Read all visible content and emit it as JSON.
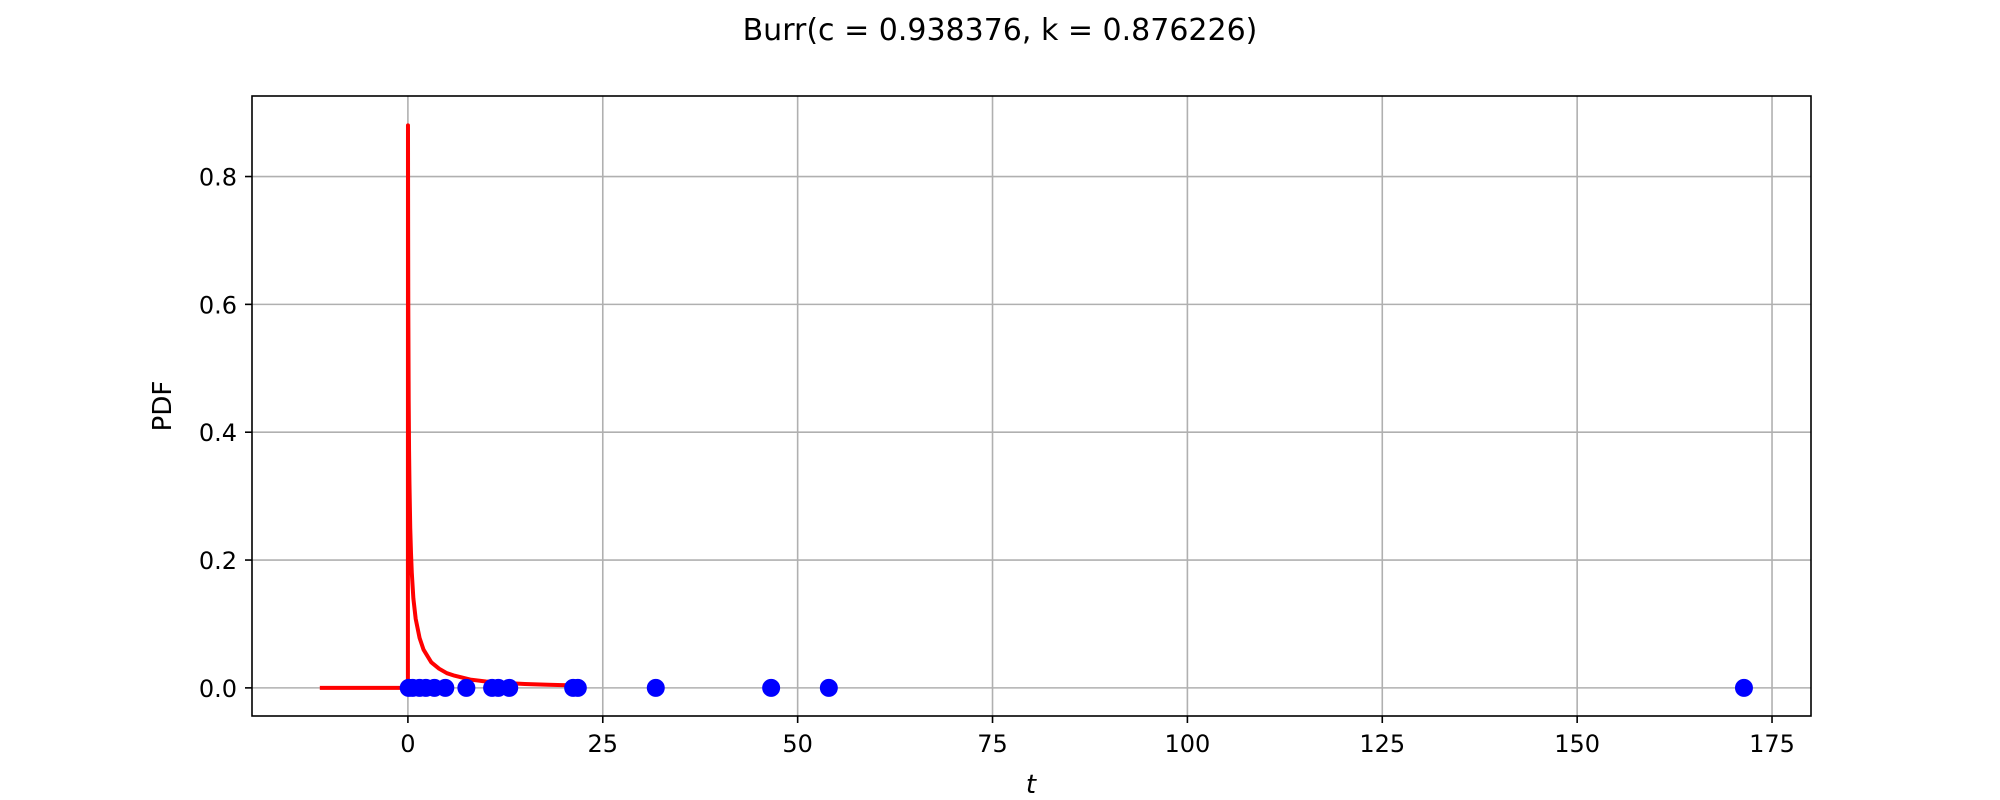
{
  "chart_data": {
    "type": "scatter",
    "title": "Burr(c = 0.938376, k = 0.876226)",
    "xlabel": "t",
    "ylabel": "PDF",
    "xlim": [
      -20,
      180
    ],
    "ylim": [
      -0.044,
      0.926
    ],
    "xticks": [
      0,
      25,
      50,
      75,
      100,
      125,
      150,
      175
    ],
    "xtick_labels": [
      "0",
      "25",
      "50",
      "75",
      "100",
      "125",
      "150",
      "175"
    ],
    "yticks": [
      0.0,
      0.2,
      0.4,
      0.6,
      0.8
    ],
    "ytick_labels": [
      "0.0",
      "0.2",
      "0.4",
      "0.6",
      "0.8"
    ],
    "grid": true,
    "curve": {
      "color": "#ff0000",
      "x": [
        -11.3,
        -8,
        -4,
        -1,
        -0.1,
        -0.02,
        0,
        0.01,
        0.03,
        0.05,
        0.1,
        0.15,
        0.2,
        0.3,
        0.4,
        0.5,
        0.7,
        1.0,
        1.5,
        2.0,
        3.0,
        4.0,
        5.0,
        6.0,
        8.0,
        10.0,
        12.0,
        15.0,
        18.0,
        21.0
      ],
      "y": [
        0,
        0,
        0,
        0,
        0,
        0,
        0,
        0.88,
        0.72,
        0.6,
        0.45,
        0.37,
        0.32,
        0.25,
        0.21,
        0.18,
        0.14,
        0.108,
        0.078,
        0.06,
        0.04,
        0.03,
        0.023,
        0.019,
        0.013,
        0.01,
        0.008,
        0.006,
        0.0048,
        0.004
      ]
    },
    "points": {
      "color": "#0000ff",
      "x": [
        0.1,
        0.6,
        1.5,
        2.3,
        3.4,
        4.8,
        7.5,
        10.8,
        11.6,
        13.0,
        21.2,
        21.8,
        31.8,
        46.6,
        54.0,
        171.4
      ],
      "y": [
        0,
        0,
        0,
        0,
        0,
        0,
        0,
        0,
        0,
        0,
        0,
        0,
        0,
        0,
        0,
        0
      ]
    }
  }
}
